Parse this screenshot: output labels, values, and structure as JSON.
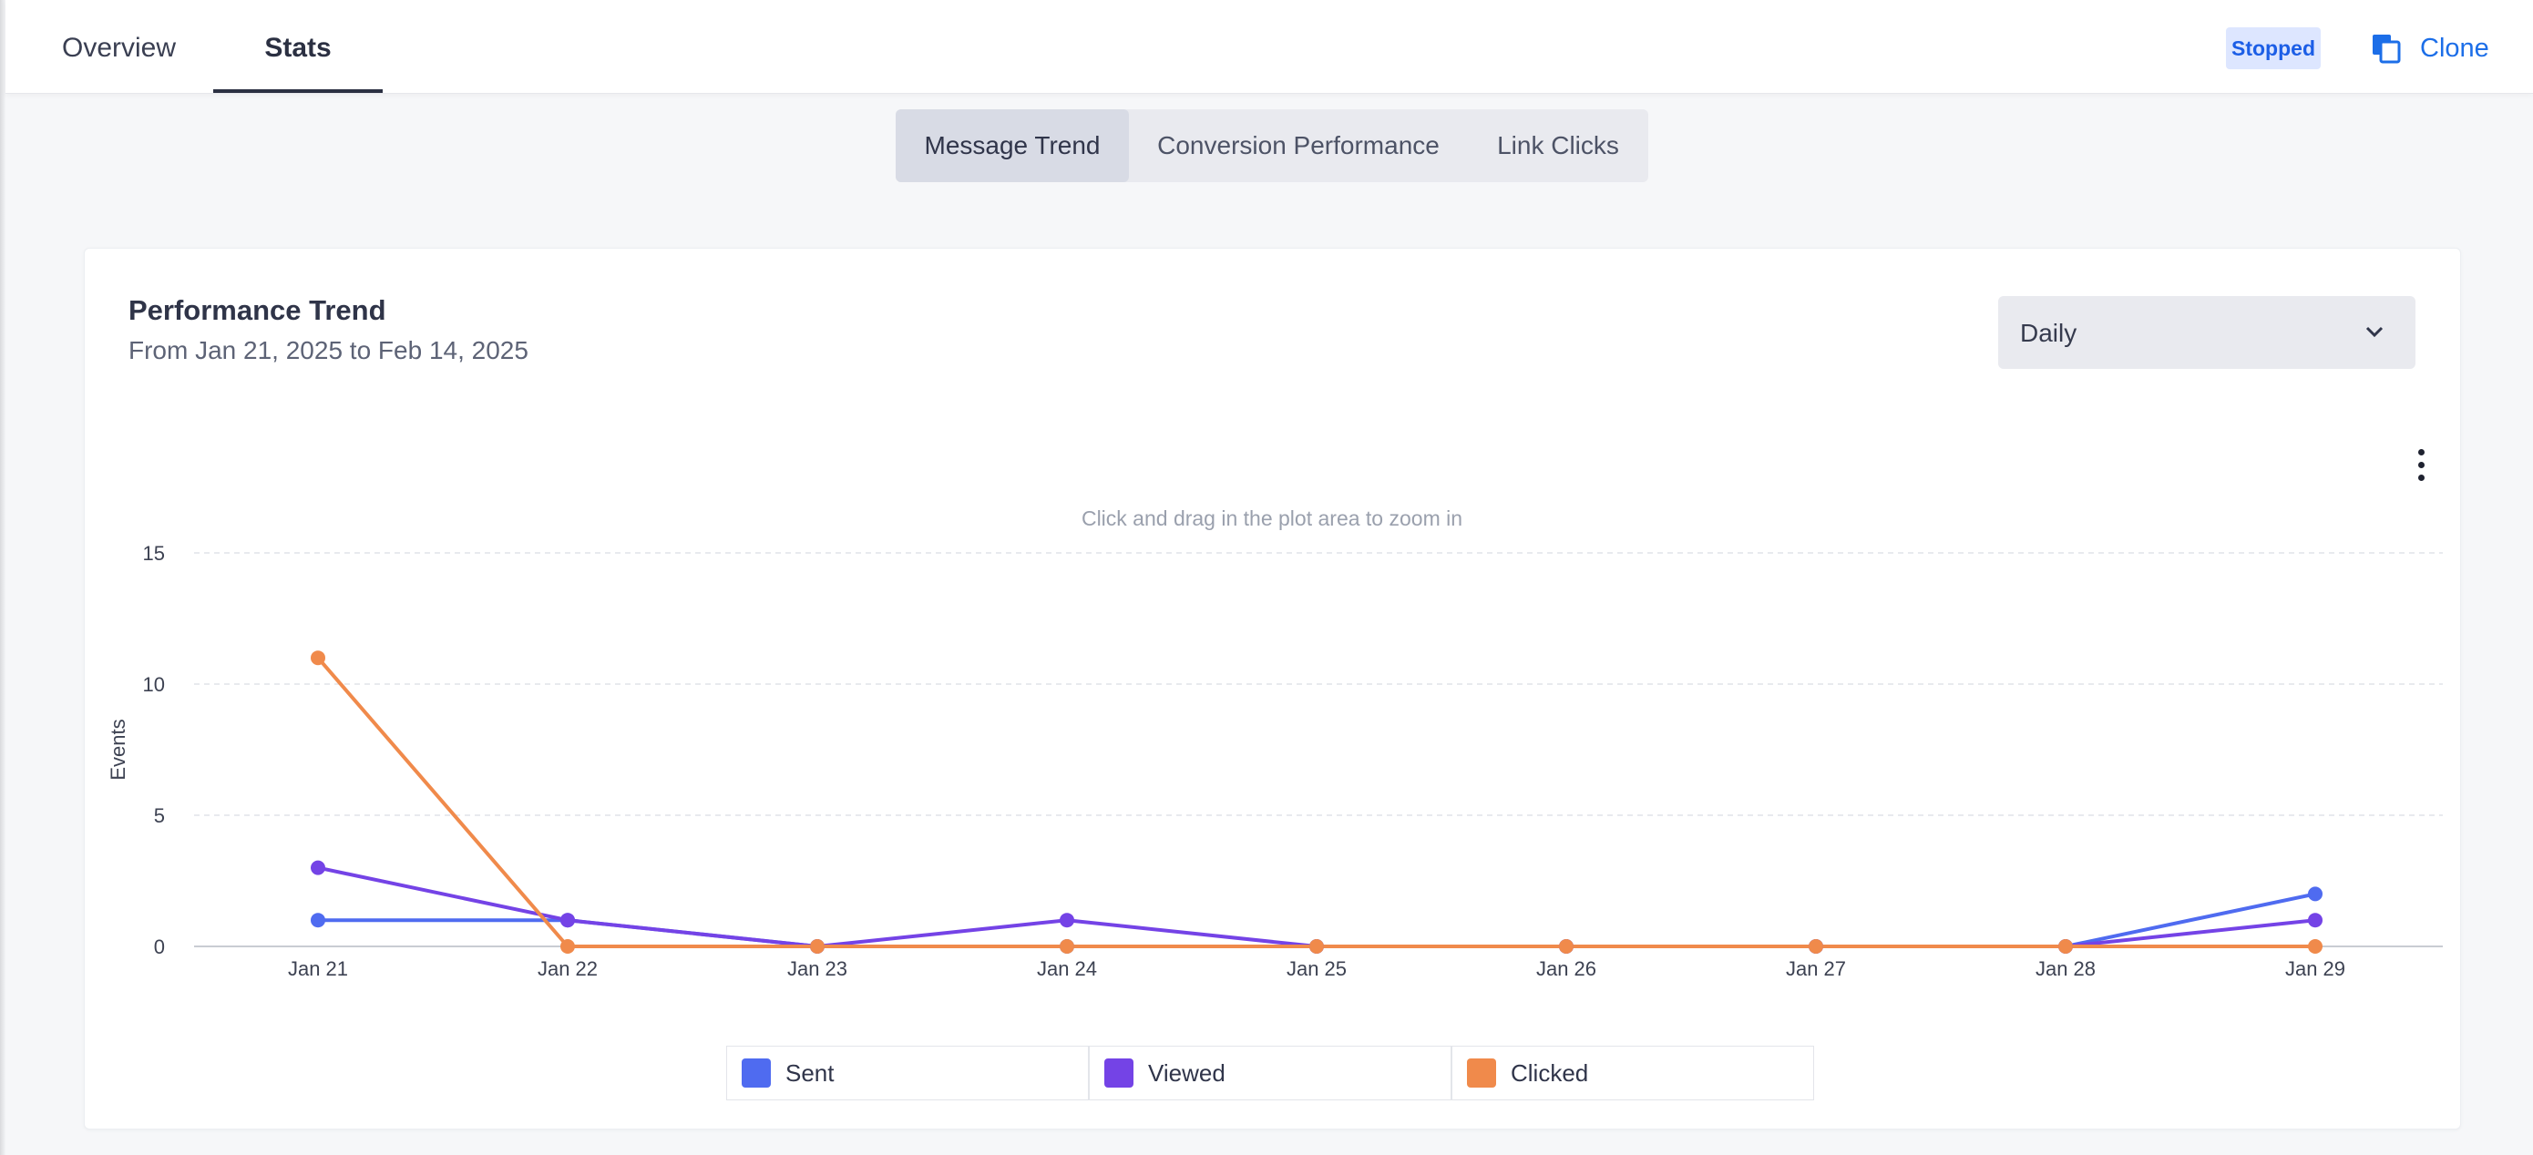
{
  "tabs": {
    "overview": "Overview",
    "stats": "Stats"
  },
  "status": {
    "label": "Stopped"
  },
  "actions": {
    "clone_label": "Clone"
  },
  "segments": [
    "Message Trend",
    "Conversion Performance",
    "Link Clicks"
  ],
  "segments_active": "Message Trend",
  "card": {
    "title": "Performance Trend",
    "subtitle": "From Jan 21, 2025 to Feb 14, 2025",
    "granularity": "Daily"
  },
  "icons": {
    "clone": "clone-icon",
    "chevron": "chevron-down-icon",
    "menu": "kebab-menu-icon"
  },
  "colors": {
    "sent": "#4f6bf0",
    "viewed": "#7443e6",
    "clicked": "#f08a4b",
    "accent": "#1c6ee8"
  },
  "chart_data": {
    "type": "line",
    "annotation": "Click and drag in the plot area to zoom in",
    "ylabel": "Events",
    "xlabel": "",
    "ylim": [
      0,
      15
    ],
    "yticks": [
      0,
      5,
      10,
      15
    ],
    "grid": true,
    "legend_position": "bottom",
    "categories": [
      "Jan 21",
      "Jan 22",
      "Jan 23",
      "Jan 24",
      "Jan 25",
      "Jan 26",
      "Jan 27",
      "Jan 28",
      "Jan 29"
    ],
    "series": [
      {
        "name": "Sent",
        "color": "#4f6bf0",
        "values": [
          1,
          1,
          0,
          0,
          0,
          0,
          0,
          0,
          2
        ]
      },
      {
        "name": "Viewed",
        "color": "#7443e6",
        "values": [
          3,
          1,
          0,
          1,
          0,
          0,
          0,
          0,
          1
        ]
      },
      {
        "name": "Clicked",
        "color": "#f08a4b",
        "values": [
          11,
          0,
          0,
          0,
          0,
          0,
          0,
          0,
          0
        ]
      }
    ]
  }
}
